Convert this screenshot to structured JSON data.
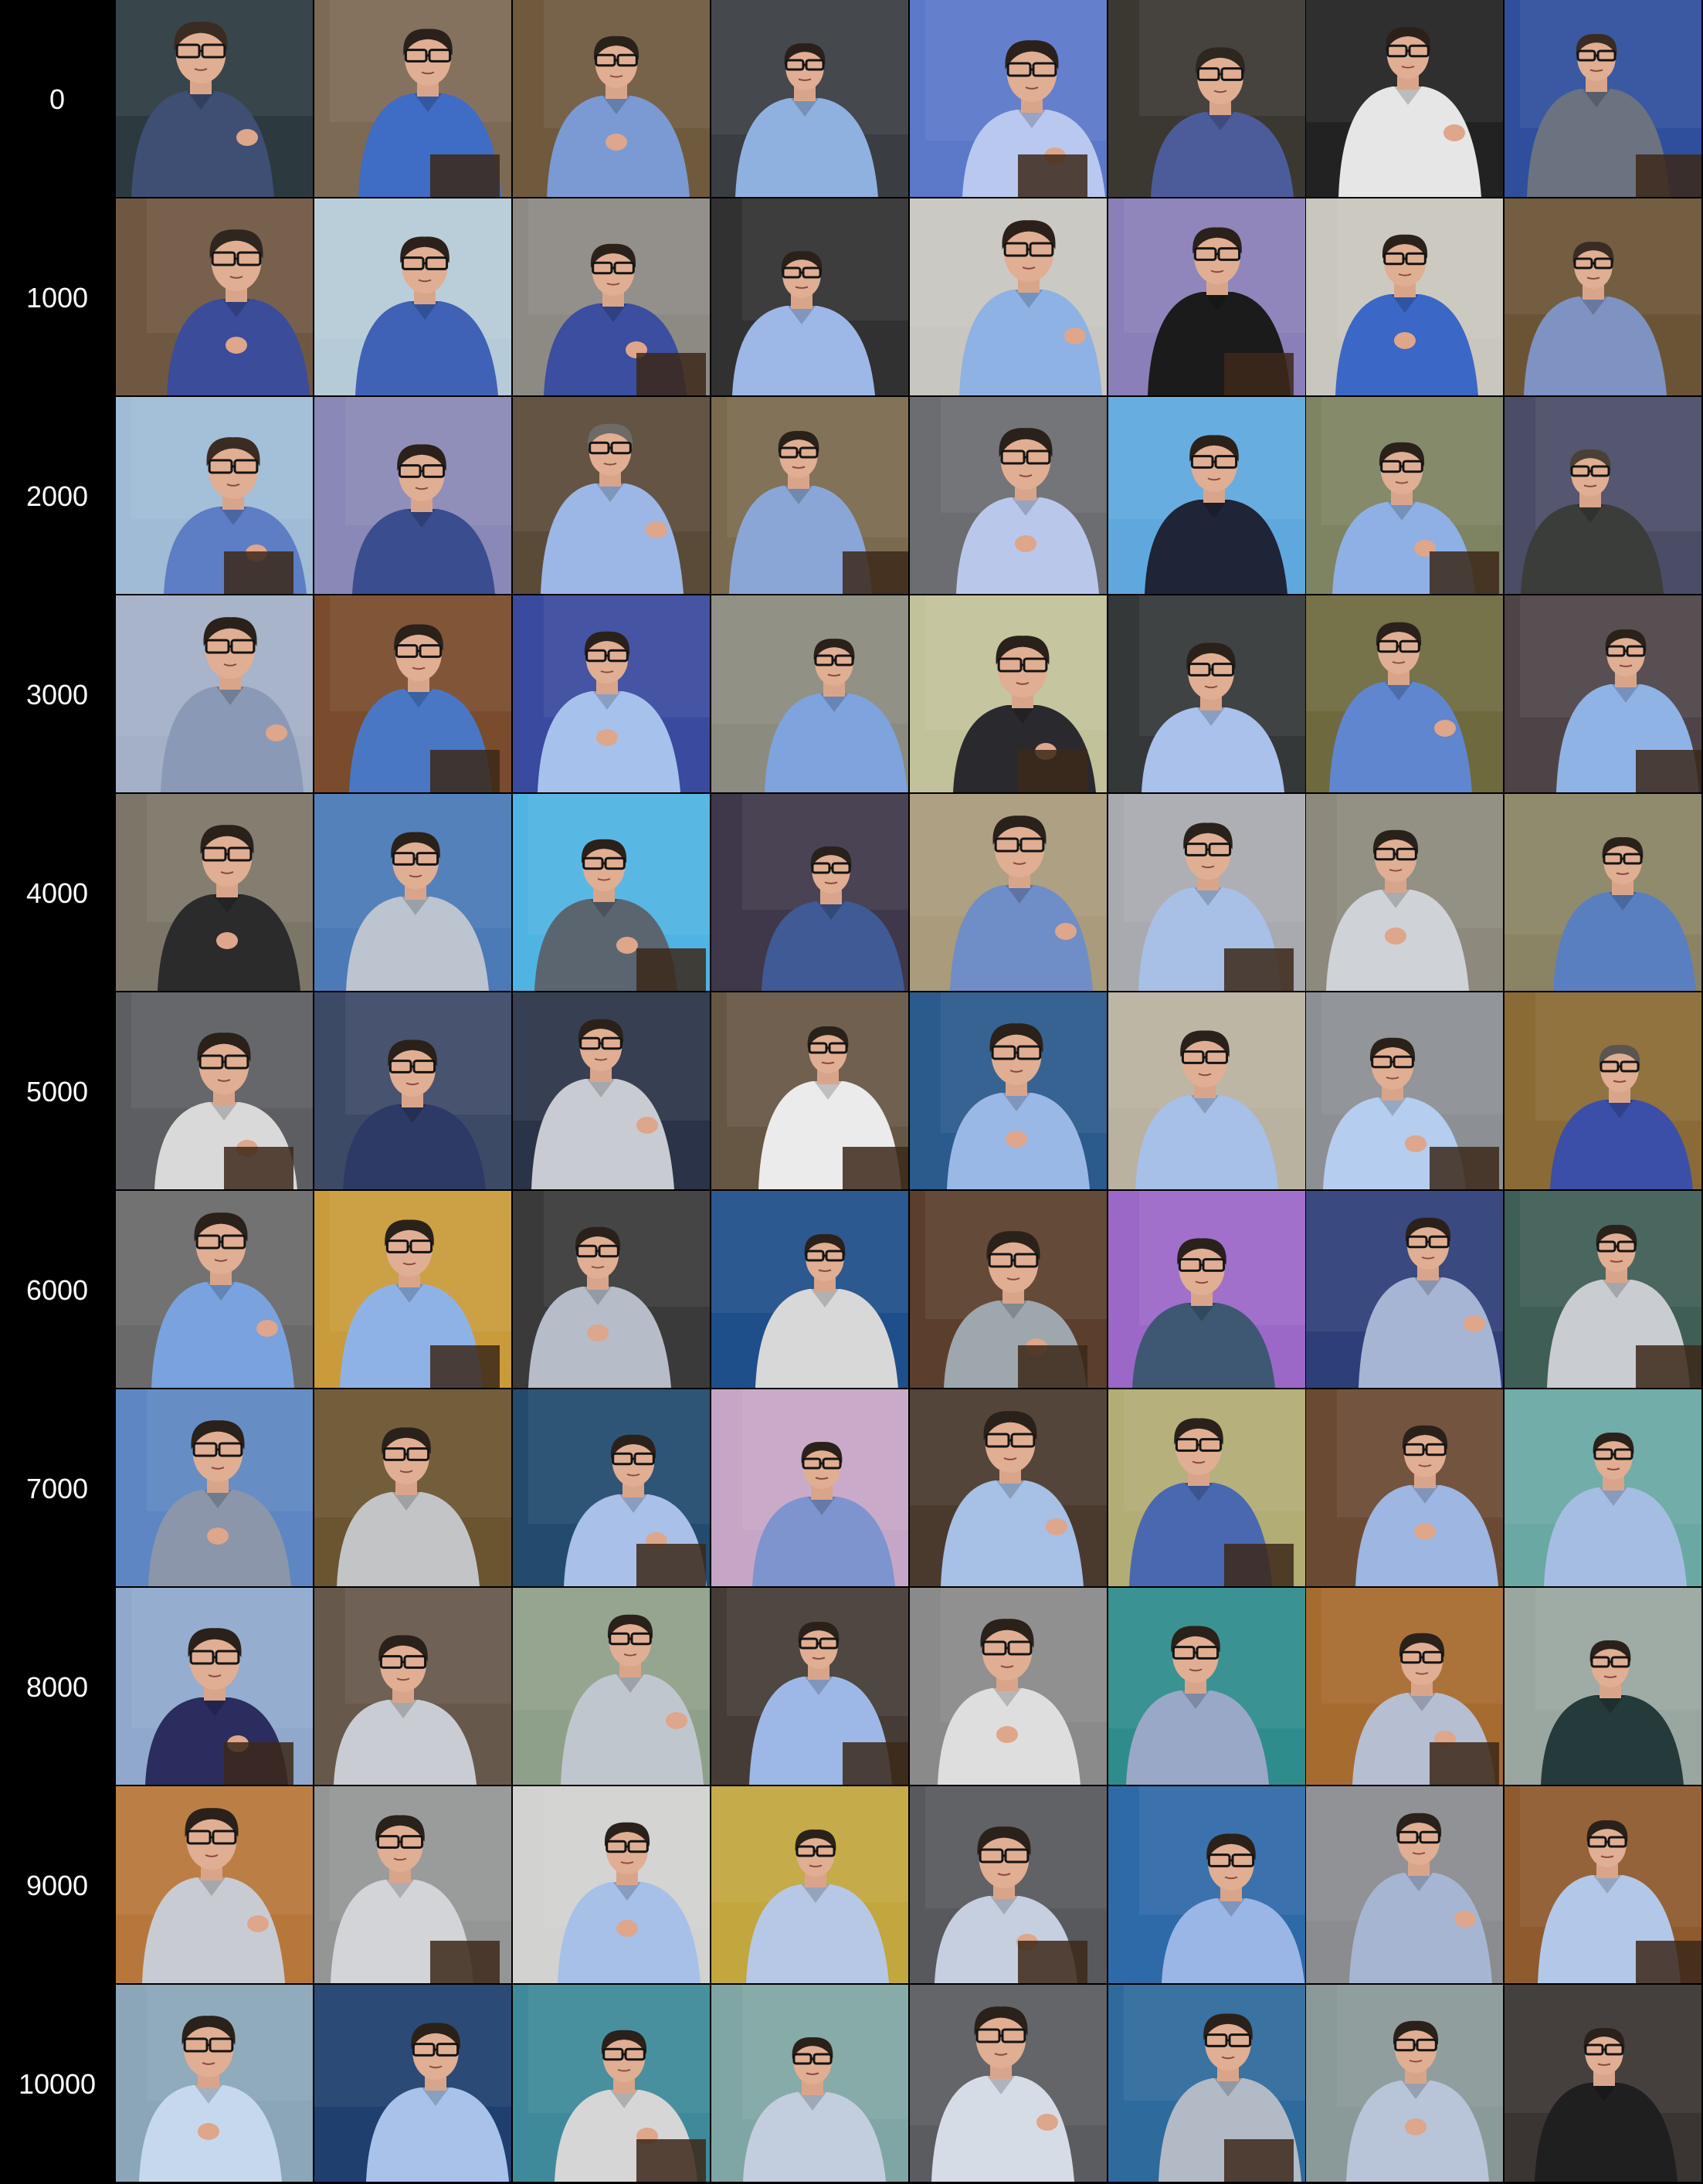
{
  "grid": {
    "rows": [
      {
        "label": "0",
        "tiles": [
          {
            "bg": "#2c3a40",
            "shirt": "#3e4f73",
            "hair": "#3a2c22"
          },
          {
            "bg": "#7d6a55",
            "shirt": "#3f6cc4",
            "hair": "#2b211b"
          },
          {
            "bg": "#6f5a3e",
            "shirt": "#7b9ad3",
            "hair": "#2a211a"
          },
          {
            "bg": "#3a3d42",
            "shirt": "#8fb1df",
            "hair": "#2a2019"
          },
          {
            "bg": "#5b78c9",
            "shirt": "#b9c8ee",
            "hair": "#2b211a"
          },
          {
            "bg": "#3b3832",
            "shirt": "#4c5c9b",
            "hair": "#2e2620"
          },
          {
            "bg": "#222222",
            "shirt": "#e6e6e6",
            "hair": "#2b211b"
          },
          {
            "bg": "#2f4f9d",
            "shirt": "#6b7280",
            "hair": "#3a2c22"
          }
        ]
      },
      {
        "label": "1000",
        "tiles": [
          {
            "bg": "#6f5842",
            "shirt": "#3b4c9a",
            "hair": "#2f2620"
          },
          {
            "bg": "#b6cbd8",
            "shirt": "#3f62b6",
            "hair": "#2b211a"
          },
          {
            "bg": "#8d8a84",
            "shirt": "#3c4ea0",
            "hair": "#2a211a"
          },
          {
            "bg": "#313131",
            "shirt": "#9db8e6",
            "hair": "#2a211a"
          },
          {
            "bg": "#c8c6c0",
            "shirt": "#8eb2e3",
            "hair": "#2b211a"
          },
          {
            "bg": "#8a7fb8",
            "shirt": "#1b1b1b",
            "hair": "#2a211a"
          },
          {
            "bg": "#c9c6bd",
            "shirt": "#3b67c7",
            "hair": "#2a211a"
          },
          {
            "bg": "#6b5436",
            "shirt": "#7f93c2",
            "hair": "#3a2c22"
          }
        ]
      },
      {
        "label": "2000",
        "tiles": [
          {
            "bg": "#9fbbd6",
            "shirt": "#5d7ec4",
            "hair": "#3a2c22"
          },
          {
            "bg": "#8a88b6",
            "shirt": "#3a4d8f",
            "hair": "#2a211a"
          },
          {
            "bg": "#5a4a38",
            "shirt": "#9cb7e6",
            "hair": "#6e6a66"
          },
          {
            "bg": "#7a6a4e",
            "shirt": "#8aa6d6",
            "hair": "#2a211a"
          },
          {
            "bg": "#6b6d70",
            "shirt": "#b9c8ea",
            "hair": "#2a211a"
          },
          {
            "bg": "#5fa8de",
            "shirt": "#1f2436",
            "hair": "#2a211a"
          },
          {
            "bg": "#7e8361",
            "shirt": "#8fb0e4",
            "hair": "#2a211a"
          },
          {
            "bg": "#4b4c66",
            "shirt": "#3a3d3a",
            "hair": "#4b4038"
          }
        ]
      },
      {
        "label": "3000",
        "tiles": [
          {
            "bg": "#a3b0c6",
            "shirt": "#8a9ab6",
            "hair": "#2a211a"
          },
          {
            "bg": "#7a4b2c",
            "shirt": "#4a77c4",
            "hair": "#2a211a"
          },
          {
            "bg": "#3a4a9e",
            "shirt": "#a6c2ec",
            "hair": "#2a211a"
          },
          {
            "bg": "#8b8b7f",
            "shirt": "#7ea3dd",
            "hair": "#2a211a"
          },
          {
            "bg": "#c2c29a",
            "shirt": "#2a2a2e",
            "hair": "#2a211a"
          },
          {
            "bg": "#353839",
            "shirt": "#a9c1eb",
            "hair": "#2a211a"
          },
          {
            "bg": "#6e6a3e",
            "shirt": "#5f86cf",
            "hair": "#2a211a"
          },
          {
            "bg": "#4e4448",
            "shirt": "#90b3e6",
            "hair": "#2a211a"
          }
        ]
      },
      {
        "label": "4000",
        "tiles": [
          {
            "bg": "#7c7668",
            "shirt": "#2b2b2b",
            "hair": "#2a211a"
          },
          {
            "bg": "#4b7ab7",
            "shirt": "#bcc4cf",
            "hair": "#2a211a"
          },
          {
            "bg": "#4fb4e2",
            "shirt": "#5b6570",
            "hair": "#2a211a"
          },
          {
            "bg": "#3e384a",
            "shirt": "#3f5a95",
            "hair": "#2a211a"
          },
          {
            "bg": "#a99b7b",
            "shirt": "#6f8ec7",
            "hair": "#2a211a"
          },
          {
            "bg": "#a8aab0",
            "shirt": "#a8c0e6",
            "hair": "#2a211a"
          },
          {
            "bg": "#8d8a7d",
            "shirt": "#cfd2d6",
            "hair": "#2a211a"
          },
          {
            "bg": "#8a8464",
            "shirt": "#5a7fc0",
            "hair": "#2a211a"
          }
        ]
      },
      {
        "label": "5000",
        "tiles": [
          {
            "bg": "#5d5e62",
            "shirt": "#d9d9d9",
            "hair": "#2a211a"
          },
          {
            "bg": "#3d4a66",
            "shirt": "#2d3a66",
            "hair": "#2a211a"
          },
          {
            "bg": "#2b3348",
            "shirt": "#c8ccd2",
            "hair": "#2a211a"
          },
          {
            "bg": "#665744",
            "shirt": "#ebebeb",
            "hair": "#2a211a"
          },
          {
            "bg": "#2b5a8c",
            "shirt": "#9ab8e6",
            "hair": "#2a211a"
          },
          {
            "bg": "#b9b2a0",
            "shirt": "#a6c0e8",
            "hair": "#2a211a"
          },
          {
            "bg": "#8c8f94",
            "shirt": "#b5cdee",
            "hair": "#2a211a"
          },
          {
            "bg": "#8b6b35",
            "shirt": "#3b4fa8",
            "hair": "#5a5550"
          }
        ]
      },
      {
        "label": "6000",
        "tiles": [
          {
            "bg": "#6a6a6a",
            "shirt": "#7aa2de",
            "hair": "#2a211a"
          },
          {
            "bg": "#c99b3a",
            "shirt": "#8fb2e6",
            "hair": "#2a211a"
          },
          {
            "bg": "#3a3a3a",
            "shirt": "#b6bdc8",
            "hair": "#2a211a"
          },
          {
            "bg": "#1f4f8a",
            "shirt": "#d8d8d8",
            "hair": "#2a211a"
          },
          {
            "bg": "#5b3f2c",
            "shirt": "#9ea6ae",
            "hair": "#2a211a"
          },
          {
            "bg": "#9c68c8",
            "shirt": "#3e5873",
            "hair": "#2a211a"
          },
          {
            "bg": "#2e3e78",
            "shirt": "#a6b5d4",
            "hair": "#2a211a"
          },
          {
            "bg": "#3e5e56",
            "shirt": "#c9ccd0",
            "hair": "#2a211a"
          }
        ]
      },
      {
        "label": "7000",
        "tiles": [
          {
            "bg": "#5e86c2",
            "shirt": "#8b96aa",
            "hair": "#2a211a"
          },
          {
            "bg": "#6b5430",
            "shirt": "#c2c4c6",
            "hair": "#2a211a"
          },
          {
            "bg": "#234b6e",
            "shirt": "#a9c0e8",
            "hair": "#2a211a"
          },
          {
            "bg": "#c6a6c6",
            "shirt": "#7d94cf",
            "hair": "#2a211a"
          },
          {
            "bg": "#4a3a2e",
            "shirt": "#a6c0e6",
            "hair": "#2a211a"
          },
          {
            "bg": "#b2ad74",
            "shirt": "#4a68b0",
            "hair": "#2a211a"
          },
          {
            "bg": "#6b4a34",
            "shirt": "#9db6e2",
            "hair": "#2a211a"
          },
          {
            "bg": "#6aa8a4",
            "shirt": "#a6bde3",
            "hair": "#2a211a"
          }
        ]
      },
      {
        "label": "8000",
        "tiles": [
          {
            "bg": "#8fa8cc",
            "shirt": "#2a2d5e",
            "hair": "#2a211a"
          },
          {
            "bg": "#67584c",
            "shirt": "#c9cdd3",
            "hair": "#2a211a"
          },
          {
            "bg": "#8fa08a",
            "shirt": "#c0c6ce",
            "hair": "#2a211a"
          },
          {
            "bg": "#453c36",
            "shirt": "#9db8e6",
            "hair": "#2a211a"
          },
          {
            "bg": "#8a8a8a",
            "shirt": "#dedede",
            "hair": "#2a211a"
          },
          {
            "bg": "#2f8c8c",
            "shirt": "#9aa8c8",
            "hair": "#2a211a"
          },
          {
            "bg": "#a66b2e",
            "shirt": "#b6bed2",
            "hair": "#2a211a"
          },
          {
            "bg": "#9aa6a0",
            "shirt": "#253a3a",
            "hair": "#2a211a"
          }
        ]
      },
      {
        "label": "9000",
        "tiles": [
          {
            "bg": "#b7773a",
            "shirt": "#c8ccd2",
            "hair": "#2a211a"
          },
          {
            "bg": "#949696",
            "shirt": "#d2d4d8",
            "hair": "#2a211a"
          },
          {
            "bg": "#d2d2d0",
            "shirt": "#a6c0e8",
            "hair": "#2a211a"
          },
          {
            "bg": "#c2a63e",
            "shirt": "#b6c8e6",
            "hair": "#2a211a"
          },
          {
            "bg": "#58595c",
            "shirt": "#c6cfe0",
            "hair": "#2a211a"
          },
          {
            "bg": "#2f6aa8",
            "shirt": "#9ab6e6",
            "hair": "#2a211a"
          },
          {
            "bg": "#8a8c90",
            "shirt": "#a6b6d2",
            "hair": "#2a211a"
          },
          {
            "bg": "#8f5a2e",
            "shirt": "#b3c8e8",
            "hair": "#2a211a"
          }
        ]
      },
      {
        "label": "10000",
        "tiles": [
          {
            "bg": "#8aa6b8",
            "shirt": "#c6d8ee",
            "hair": "#2a211a"
          },
          {
            "bg": "#1f3f6e",
            "shirt": "#a8c2ea",
            "hair": "#2a211a"
          },
          {
            "bg": "#3e8a9a",
            "shirt": "#d6d6d6",
            "hair": "#2a211a"
          },
          {
            "bg": "#7fa6a4",
            "shirt": "#c2cede",
            "hair": "#2a211a"
          },
          {
            "bg": "#5a5c60",
            "shirt": "#d6dce6",
            "hair": "#2a211a"
          },
          {
            "bg": "#2e6a9c",
            "shirt": "#b2bac6",
            "hair": "#2a211a"
          },
          {
            "bg": "#8a9a98",
            "shirt": "#b8c4d8",
            "hair": "#2a211a"
          },
          {
            "bg": "#3a3432",
            "shirt": "#1f1f1f",
            "hair": "#2a211a"
          }
        ]
      }
    ]
  }
}
